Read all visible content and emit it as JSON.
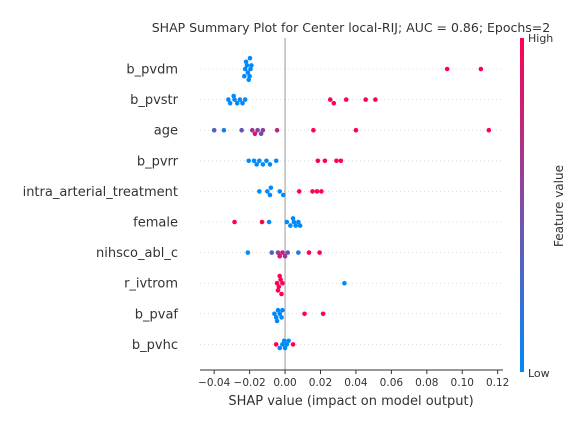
{
  "chart_data": {
    "type": "scatter",
    "title": "SHAP Summary Plot for Center local-RIJ; AUC = 0.86; Epochs=2",
    "xlabel": "SHAP value (impact on model output)",
    "xlim": [
      -0.048,
      0.123
    ],
    "xticks": [
      -0.04,
      -0.02,
      0.0,
      0.02,
      0.04,
      0.06,
      0.08,
      0.1,
      0.12
    ],
    "xtick_labels": [
      "−0.04",
      "−0.02",
      "0.00",
      "0.02",
      "0.04",
      "0.06",
      "0.08",
      "0.10",
      "0.12"
    ],
    "colorbar": {
      "label": "Feature value",
      "high": "High",
      "low": "Low",
      "color_high": "#ff0052",
      "color_low": "#008afb"
    },
    "features": [
      {
        "name": "b_pvdm",
        "points": [
          {
            "x": -0.0225,
            "v": 0
          },
          {
            "x": -0.021,
            "v": 0
          },
          {
            "x": -0.0195,
            "v": 0
          },
          {
            "x": -0.0215,
            "v": 0
          },
          {
            "x": -0.02,
            "v": 0
          },
          {
            "x": -0.022,
            "v": 0
          },
          {
            "x": -0.019,
            "v": 0
          },
          {
            "x": -0.0205,
            "v": 0
          },
          {
            "x": -0.0198,
            "v": 0
          },
          {
            "x": -0.023,
            "v": 0
          },
          {
            "x": 0.0915,
            "v": 1
          },
          {
            "x": 0.1105,
            "v": 1
          }
        ]
      },
      {
        "name": "b_pvstr",
        "points": [
          {
            "x": -0.032,
            "v": 0
          },
          {
            "x": -0.031,
            "v": 0
          },
          {
            "x": -0.0285,
            "v": 0
          },
          {
            "x": -0.027,
            "v": 0
          },
          {
            "x": -0.0255,
            "v": 0
          },
          {
            "x": -0.024,
            "v": 0
          },
          {
            "x": -0.0225,
            "v": 0
          },
          {
            "x": -0.029,
            "v": 0
          },
          {
            "x": 0.0255,
            "v": 1
          },
          {
            "x": 0.0275,
            "v": 1
          },
          {
            "x": 0.0345,
            "v": 1
          },
          {
            "x": 0.0455,
            "v": 1
          },
          {
            "x": 0.051,
            "v": 1
          }
        ]
      },
      {
        "name": "age",
        "points": [
          {
            "x": -0.04,
            "v": 0.35
          },
          {
            "x": -0.0345,
            "v": 0.1
          },
          {
            "x": -0.0245,
            "v": 0.4
          },
          {
            "x": -0.0185,
            "v": 0.6
          },
          {
            "x": -0.017,
            "v": 0.9
          },
          {
            "x": -0.0155,
            "v": 0.5
          },
          {
            "x": -0.0135,
            "v": 0.45
          },
          {
            "x": -0.0125,
            "v": 0.55
          },
          {
            "x": -0.0045,
            "v": 0.75
          },
          {
            "x": 0.016,
            "v": 1
          },
          {
            "x": 0.04,
            "v": 1
          },
          {
            "x": 0.115,
            "v": 1
          }
        ]
      },
      {
        "name": "b_pvrr",
        "points": [
          {
            "x": -0.0205,
            "v": 0
          },
          {
            "x": -0.0175,
            "v": 0
          },
          {
            "x": -0.016,
            "v": 0
          },
          {
            "x": -0.0145,
            "v": 0
          },
          {
            "x": -0.0125,
            "v": 0
          },
          {
            "x": -0.0105,
            "v": 0
          },
          {
            "x": -0.0085,
            "v": 0
          },
          {
            "x": -0.005,
            "v": 0
          },
          {
            "x": 0.0185,
            "v": 1
          },
          {
            "x": 0.0225,
            "v": 1
          },
          {
            "x": 0.029,
            "v": 1
          },
          {
            "x": 0.0315,
            "v": 1
          }
        ]
      },
      {
        "name": "intra_arterial_treatment",
        "points": [
          {
            "x": -0.0145,
            "v": 0
          },
          {
            "x": -0.01,
            "v": 0
          },
          {
            "x": -0.0085,
            "v": 0
          },
          {
            "x": -0.008,
            "v": 0
          },
          {
            "x": -0.003,
            "v": 0
          },
          {
            "x": -0.001,
            "v": 0
          },
          {
            "x": 0.008,
            "v": 1
          },
          {
            "x": 0.0155,
            "v": 1
          },
          {
            "x": 0.018,
            "v": 1
          },
          {
            "x": 0.0205,
            "v": 1
          }
        ]
      },
      {
        "name": "female",
        "points": [
          {
            "x": -0.0285,
            "v": 1
          },
          {
            "x": -0.013,
            "v": 1
          },
          {
            "x": -0.009,
            "v": 0
          },
          {
            "x": 0.001,
            "v": 0
          },
          {
            "x": 0.003,
            "v": 0
          },
          {
            "x": 0.005,
            "v": 0
          },
          {
            "x": 0.006,
            "v": 0
          },
          {
            "x": 0.0075,
            "v": 0
          },
          {
            "x": 0.0085,
            "v": 0
          },
          {
            "x": 0.0045,
            "v": 0
          }
        ]
      },
      {
        "name": "nihsco_abl_c",
        "points": [
          {
            "x": -0.021,
            "v": 0
          },
          {
            "x": -0.0075,
            "v": 0.3
          },
          {
            "x": -0.004,
            "v": 0.5
          },
          {
            "x": -0.0015,
            "v": 0.8
          },
          {
            "x": 0.0,
            "v": 0.6
          },
          {
            "x": 0.0015,
            "v": 0.4
          },
          {
            "x": 0.0075,
            "v": 0.1
          },
          {
            "x": 0.0135,
            "v": 1
          },
          {
            "x": 0.0195,
            "v": 1
          },
          {
            "x": -0.003,
            "v": 0.9
          }
        ]
      },
      {
        "name": "r_ivtrom",
        "points": [
          {
            "x": -0.0045,
            "v": 1
          },
          {
            "x": -0.0035,
            "v": 1
          },
          {
            "x": -0.0025,
            "v": 1
          },
          {
            "x": -0.0015,
            "v": 1
          },
          {
            "x": -0.004,
            "v": 1
          },
          {
            "x": -0.003,
            "v": 1
          },
          {
            "x": -0.002,
            "v": 1
          },
          {
            "x": 0.0335,
            "v": 0
          }
        ]
      },
      {
        "name": "b_pvaf",
        "points": [
          {
            "x": -0.006,
            "v": 0
          },
          {
            "x": -0.005,
            "v": 0
          },
          {
            "x": -0.004,
            "v": 0
          },
          {
            "x": -0.003,
            "v": 0
          },
          {
            "x": -0.002,
            "v": 0
          },
          {
            "x": -0.0015,
            "v": 0
          },
          {
            "x": -0.0045,
            "v": 0
          },
          {
            "x": 0.011,
            "v": 1
          },
          {
            "x": 0.0215,
            "v": 1
          }
        ]
      },
      {
        "name": "b_pvhc",
        "points": [
          {
            "x": -0.005,
            "v": 1
          },
          {
            "x": -0.003,
            "v": 0
          },
          {
            "x": -0.0015,
            "v": 0
          },
          {
            "x": 0.0,
            "v": 0
          },
          {
            "x": 0.001,
            "v": 0
          },
          {
            "x": 0.002,
            "v": 0
          },
          {
            "x": 0.0045,
            "v": 1
          },
          {
            "x": -0.0005,
            "v": 0
          }
        ]
      }
    ]
  }
}
